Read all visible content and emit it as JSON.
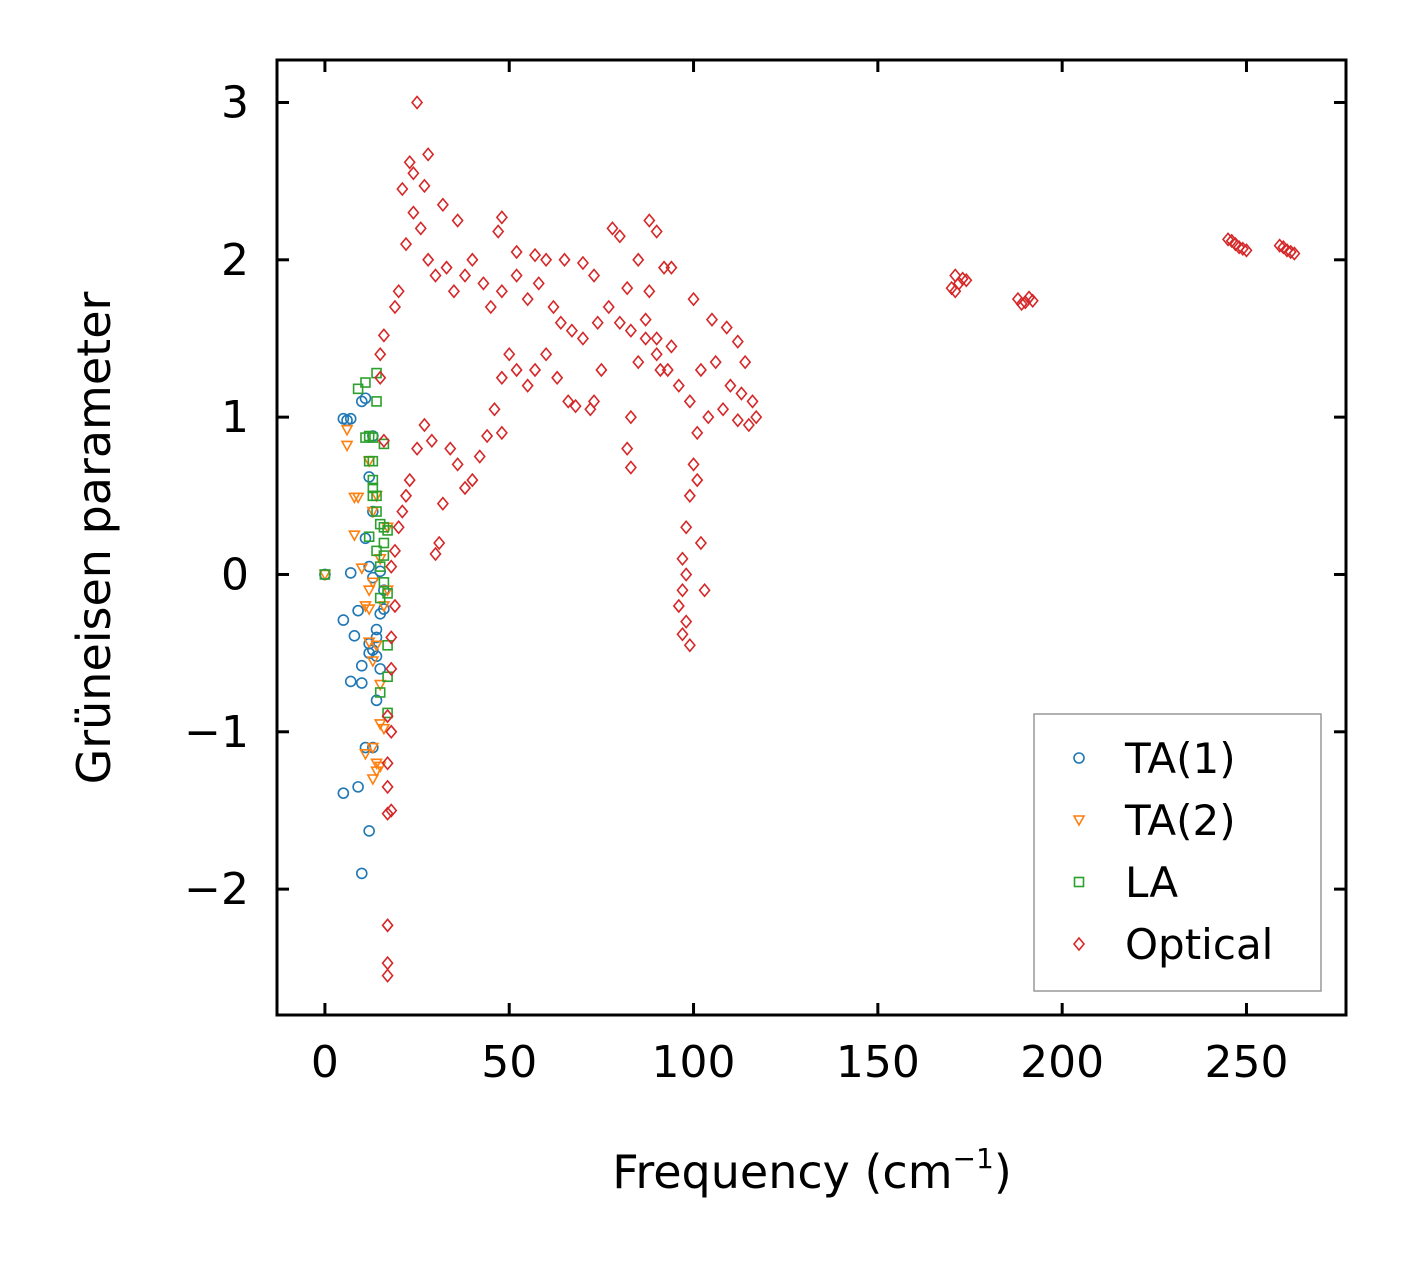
{
  "chart_data": {
    "type": "scatter",
    "title": "",
    "xlabel": "Frequency (cm",
    "xlabel_exponent": "−1",
    "xlabel_close": ")",
    "ylabel": "Grüneisen parameter",
    "xlim": [
      -13,
      277
    ],
    "ylim": [
      -2.8,
      3.27
    ],
    "xticks": [
      0,
      50,
      100,
      150,
      200,
      250
    ],
    "yticks": [
      3,
      2,
      1,
      0,
      -1,
      -2
    ],
    "xtick_labels": [
      "0",
      "50",
      "100",
      "150",
      "200",
      "250"
    ],
    "ytick_labels": [
      "3",
      "2",
      "1",
      "0",
      "−1",
      "−2"
    ],
    "grid": false,
    "legend_position": "bottom-right",
    "series": [
      {
        "name": "TA(1)",
        "marker": "circle",
        "color": "#1f77b4",
        "points": [
          [
            0,
            0
          ],
          [
            5,
            0.99
          ],
          [
            6,
            0.98
          ],
          [
            7,
            0.99
          ],
          [
            5,
            -0.29
          ],
          [
            7,
            0.01
          ],
          [
            8,
            -0.39
          ],
          [
            9,
            -0.23
          ],
          [
            10,
            -0.58
          ],
          [
            10,
            -0.69
          ],
          [
            7,
            -0.68
          ],
          [
            5,
            -1.39
          ],
          [
            9,
            -1.35
          ],
          [
            10,
            -1.9
          ],
          [
            12,
            -1.63
          ],
          [
            10,
            1.1
          ],
          [
            11,
            1.12
          ],
          [
            12,
            0.62
          ],
          [
            13,
            0.88
          ],
          [
            11,
            0.23
          ],
          [
            12,
            0.05
          ],
          [
            13,
            -0.02
          ],
          [
            13,
            -0.48
          ],
          [
            14,
            -0.52
          ],
          [
            12,
            -0.44
          ],
          [
            14,
            -0.35
          ],
          [
            15,
            -0.25
          ],
          [
            16,
            -0.22
          ],
          [
            15,
            -0.6
          ],
          [
            14,
            -0.8
          ],
          [
            12,
            -0.5
          ],
          [
            13,
            -1.1
          ],
          [
            14,
            -0.4
          ],
          [
            16,
            -0.1
          ],
          [
            15,
            0.02
          ],
          [
            13,
            0.4
          ],
          [
            11,
            -1.1
          ]
        ]
      },
      {
        "name": "TA(2)",
        "marker": "triangle-down",
        "color": "#ff7f0e",
        "points": [
          [
            0,
            0
          ],
          [
            6,
            0.92
          ],
          [
            6,
            0.82
          ],
          [
            8,
            0.49
          ],
          [
            9,
            0.49
          ],
          [
            8,
            0.25
          ],
          [
            10,
            0.04
          ],
          [
            11,
            -0.2
          ],
          [
            12,
            -0.22
          ],
          [
            13,
            -0.05
          ],
          [
            12,
            -0.1
          ],
          [
            14,
            -0.45
          ],
          [
            13,
            -0.55
          ],
          [
            15,
            -0.7
          ],
          [
            15,
            -0.95
          ],
          [
            16,
            -0.98
          ],
          [
            13,
            -1.1
          ],
          [
            14,
            -1.2
          ],
          [
            15,
            -1.22
          ],
          [
            13,
            -1.3
          ],
          [
            14,
            -1.25
          ],
          [
            11,
            -1.14
          ],
          [
            12,
            -0.43
          ],
          [
            16,
            -0.2
          ],
          [
            17,
            -0.1
          ],
          [
            15,
            0.1
          ],
          [
            14,
            0.5
          ],
          [
            12,
            0.72
          ],
          [
            13,
            0.4
          ],
          [
            17,
            0.3
          ]
        ]
      },
      {
        "name": "LA",
        "marker": "square",
        "color": "#2ca02c",
        "points": [
          [
            0,
            0
          ],
          [
            9,
            1.18
          ],
          [
            11,
            1.22
          ],
          [
            14,
            1.28
          ],
          [
            14,
            1.1
          ],
          [
            12,
            0.88
          ],
          [
            13,
            0.87
          ],
          [
            16,
            0.83
          ],
          [
            11,
            0.87
          ],
          [
            12,
            0.72
          ],
          [
            13,
            0.72
          ],
          [
            13,
            0.6
          ],
          [
            13,
            0.5
          ],
          [
            14,
            0.5
          ],
          [
            14,
            0.4
          ],
          [
            15,
            0.32
          ],
          [
            16,
            0.3
          ],
          [
            17,
            0.28
          ],
          [
            16,
            0.2
          ],
          [
            16,
            0.12
          ],
          [
            15,
            0.05
          ],
          [
            16,
            -0.05
          ],
          [
            17,
            -0.12
          ],
          [
            15,
            -0.15
          ],
          [
            17,
            -0.45
          ],
          [
            15,
            -0.75
          ],
          [
            17,
            -0.65
          ],
          [
            17,
            -0.88
          ],
          [
            13,
            0.55
          ],
          [
            12,
            0.24
          ],
          [
            14,
            0.15
          ]
        ]
      },
      {
        "name": "Optical",
        "marker": "diamond",
        "color": "#d62728",
        "points": [
          [
            25,
            3.0
          ],
          [
            28,
            2.67
          ],
          [
            23,
            2.62
          ],
          [
            24,
            2.55
          ],
          [
            27,
            2.47
          ],
          [
            21,
            2.45
          ],
          [
            32,
            2.35
          ],
          [
            36,
            2.25
          ],
          [
            48,
            2.27
          ],
          [
            47,
            2.18
          ],
          [
            52,
            2.05
          ],
          [
            57,
            2.03
          ],
          [
            60,
            2.0
          ],
          [
            65,
            2.0
          ],
          [
            70,
            1.98
          ],
          [
            73,
            1.9
          ],
          [
            78,
            2.2
          ],
          [
            80,
            2.15
          ],
          [
            88,
            2.25
          ],
          [
            90,
            2.18
          ],
          [
            85,
            2.0
          ],
          [
            94,
            1.95
          ],
          [
            82,
            1.82
          ],
          [
            100,
            1.75
          ],
          [
            105,
            1.62
          ],
          [
            109,
            1.57
          ],
          [
            112,
            1.48
          ],
          [
            114,
            1.35
          ],
          [
            116,
            1.1
          ],
          [
            117,
            1.0
          ],
          [
            115,
            0.95
          ],
          [
            112,
            0.98
          ],
          [
            108,
            1.05
          ],
          [
            104,
            1.0
          ],
          [
            101,
            0.9
          ],
          [
            100,
            0.7
          ],
          [
            99,
            0.5
          ],
          [
            98,
            0.3
          ],
          [
            97,
            0.1
          ],
          [
            97,
            -0.1
          ],
          [
            98,
            -0.3
          ],
          [
            99,
            -0.45
          ],
          [
            97,
            -0.38
          ],
          [
            96,
            -0.2
          ],
          [
            98,
            0.0
          ],
          [
            101,
            0.6
          ],
          [
            103,
            -0.1
          ],
          [
            102,
            0.2
          ],
          [
            83,
            0.68
          ],
          [
            82,
            0.8
          ],
          [
            83,
            1.0
          ],
          [
            85,
            1.35
          ],
          [
            90,
            1.5
          ],
          [
            94,
            1.45
          ],
          [
            91,
            1.3
          ],
          [
            87,
            1.62
          ],
          [
            88,
            1.8
          ],
          [
            92,
            1.95
          ],
          [
            75,
            1.3
          ],
          [
            73,
            1.1
          ],
          [
            72,
            1.05
          ],
          [
            68,
            1.07
          ],
          [
            66,
            1.1
          ],
          [
            63,
            1.25
          ],
          [
            60,
            1.4
          ],
          [
            57,
            1.3
          ],
          [
            55,
            1.2
          ],
          [
            52,
            1.3
          ],
          [
            50,
            1.4
          ],
          [
            48,
            1.25
          ],
          [
            46,
            1.05
          ],
          [
            48,
            0.9
          ],
          [
            44,
            0.88
          ],
          [
            42,
            0.75
          ],
          [
            40,
            0.6
          ],
          [
            38,
            0.55
          ],
          [
            36,
            0.7
          ],
          [
            34,
            0.8
          ],
          [
            32,
            0.45
          ],
          [
            31,
            0.2
          ],
          [
            30,
            0.13
          ],
          [
            29,
            0.85
          ],
          [
            27,
            0.95
          ],
          [
            25,
            0.8
          ],
          [
            23,
            0.6
          ],
          [
            22,
            0.5
          ],
          [
            21,
            0.4
          ],
          [
            20,
            0.3
          ],
          [
            19,
            0.15
          ],
          [
            18,
            0.05
          ],
          [
            19,
            -0.2
          ],
          [
            18,
            -0.4
          ],
          [
            18,
            -0.6
          ],
          [
            17,
            -0.9
          ],
          [
            18,
            -1.0
          ],
          [
            17,
            -1.2
          ],
          [
            17,
            -1.35
          ],
          [
            18,
            -1.5
          ],
          [
            17,
            -1.52
          ],
          [
            17,
            -2.23
          ],
          [
            17,
            -2.47
          ],
          [
            17,
            -2.55
          ],
          [
            16,
            0.85
          ],
          [
            15,
            1.25
          ],
          [
            15,
            1.4
          ],
          [
            16,
            1.52
          ],
          [
            19,
            1.7
          ],
          [
            20,
            1.8
          ],
          [
            22,
            2.1
          ],
          [
            24,
            2.3
          ],
          [
            26,
            2.2
          ],
          [
            28,
            2.0
          ],
          [
            30,
            1.9
          ],
          [
            33,
            1.95
          ],
          [
            35,
            1.8
          ],
          [
            38,
            1.9
          ],
          [
            40,
            2.0
          ],
          [
            43,
            1.85
          ],
          [
            45,
            1.7
          ],
          [
            48,
            1.8
          ],
          [
            52,
            1.9
          ],
          [
            55,
            1.75
          ],
          [
            58,
            1.85
          ],
          [
            62,
            1.7
          ],
          [
            64,
            1.6
          ],
          [
            67,
            1.55
          ],
          [
            70,
            1.5
          ],
          [
            74,
            1.6
          ],
          [
            77,
            1.7
          ],
          [
            80,
            1.6
          ],
          [
            83,
            1.55
          ],
          [
            87,
            1.5
          ],
          [
            90,
            1.4
          ],
          [
            93,
            1.3
          ],
          [
            96,
            1.2
          ],
          [
            99,
            1.1
          ],
          [
            102,
            1.3
          ],
          [
            106,
            1.35
          ],
          [
            110,
            1.2
          ],
          [
            113,
            1.15
          ],
          [
            171,
            1.9
          ],
          [
            172,
            1.85
          ],
          [
            170,
            1.82
          ],
          [
            173,
            1.88
          ],
          [
            171,
            1.8
          ],
          [
            174,
            1.87
          ],
          [
            188,
            1.75
          ],
          [
            190,
            1.73
          ],
          [
            192,
            1.74
          ],
          [
            189,
            1.72
          ],
          [
            191,
            1.76
          ],
          [
            246,
            2.12
          ],
          [
            247,
            2.1
          ],
          [
            248,
            2.08
          ],
          [
            249,
            2.07
          ],
          [
            250,
            2.06
          ],
          [
            245,
            2.13
          ],
          [
            259,
            2.09
          ],
          [
            260,
            2.08
          ],
          [
            261,
            2.06
          ],
          [
            262,
            2.05
          ],
          [
            263,
            2.04
          ]
        ]
      }
    ]
  }
}
